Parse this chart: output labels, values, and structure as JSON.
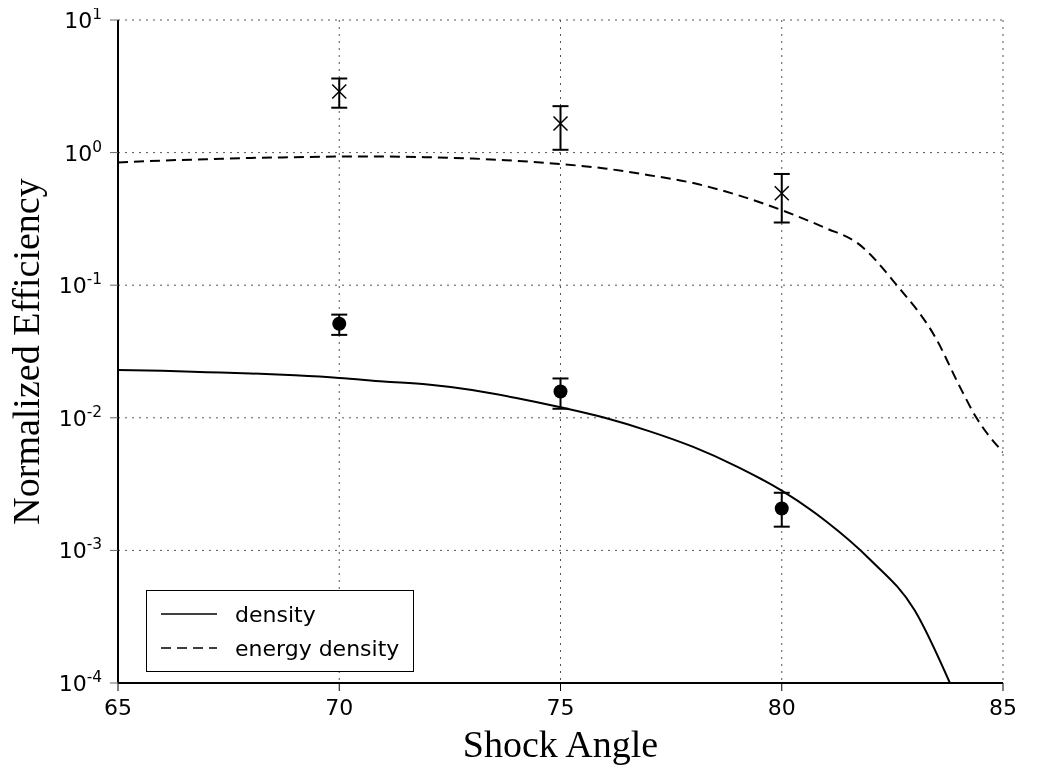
{
  "chart_data": {
    "type": "line",
    "xlabel": "Shock Angle",
    "ylabel": "Normalized Efficiency",
    "xlim": [
      65,
      85
    ],
    "xticks": [
      65,
      70,
      75,
      80,
      85
    ],
    "ylim": [
      0.0001,
      10
    ],
    "yticks": [
      {
        "value": 0.0001,
        "label": "10$^{-4}$"
      },
      {
        "value": 0.001,
        "label": "10$^{-3}$"
      },
      {
        "value": 0.01,
        "label": "10$^{-2}$"
      },
      {
        "value": 0.1,
        "label": "10$^{-1}$"
      },
      {
        "value": 1,
        "label": "10$^{0}$"
      },
      {
        "value": 10,
        "label": "10$^{1}$"
      }
    ],
    "log": "y",
    "grid": true,
    "legend": "bottom left",
    "series": [
      {
        "name": "density",
        "color": "#000000",
        "line_style": "solid",
        "marker": "none",
        "x": [
          65,
          66,
          67,
          68,
          69,
          70,
          71,
          72,
          73,
          74,
          75,
          76,
          77,
          78,
          79,
          80,
          81,
          82,
          83,
          83.8
        ],
        "values": [
          0.0229,
          0.0226,
          0.0221,
          0.0216,
          0.0209,
          0.02,
          0.0188,
          0.0178,
          0.0162,
          0.0141,
          0.012,
          0.01,
          0.00794,
          0.00603,
          0.00427,
          0.00282,
          0.00166,
          0.000851,
          0.000355,
          0.0001
        ]
      },
      {
        "name": "energy density",
        "color": "#000000",
        "line_style": "dashed",
        "marker": "none",
        "x": [
          65,
          66,
          67,
          68,
          69,
          70,
          71,
          72,
          73,
          74,
          75,
          76,
          77,
          78,
          79,
          80,
          81,
          81.7,
          82.6,
          83.5,
          84,
          84.4,
          85
        ],
        "values": [
          0.843,
          0.871,
          0.891,
          0.912,
          0.923,
          0.933,
          0.933,
          0.923,
          0.902,
          0.867,
          0.82,
          0.759,
          0.676,
          0.589,
          0.479,
          0.368,
          0.269,
          0.209,
          0.1,
          0.0389,
          0.0178,
          0.01,
          0.0055
        ]
      },
      {
        "type": "scatter",
        "color": "#000000",
        "marker": "circle",
        "x": [
          70,
          75,
          80
        ],
        "values": [
          0.0512,
          0.0158,
          0.00207
        ],
        "errors": [
          [
            0.0422,
            0.06
          ],
          [
            0.0117,
            0.0198
          ],
          [
            0.00151,
            0.00272
          ]
        ]
      },
      {
        "type": "scatter",
        "color": "#000000",
        "marker": "cross",
        "x": [
          70,
          75,
          80
        ],
        "values": [
          2.89,
          1.66,
          0.494
        ],
        "errors": [
          [
            2.18,
            3.62
          ],
          [
            1.05,
            2.24
          ],
          [
            0.297,
            0.69
          ]
        ]
      }
    ]
  }
}
